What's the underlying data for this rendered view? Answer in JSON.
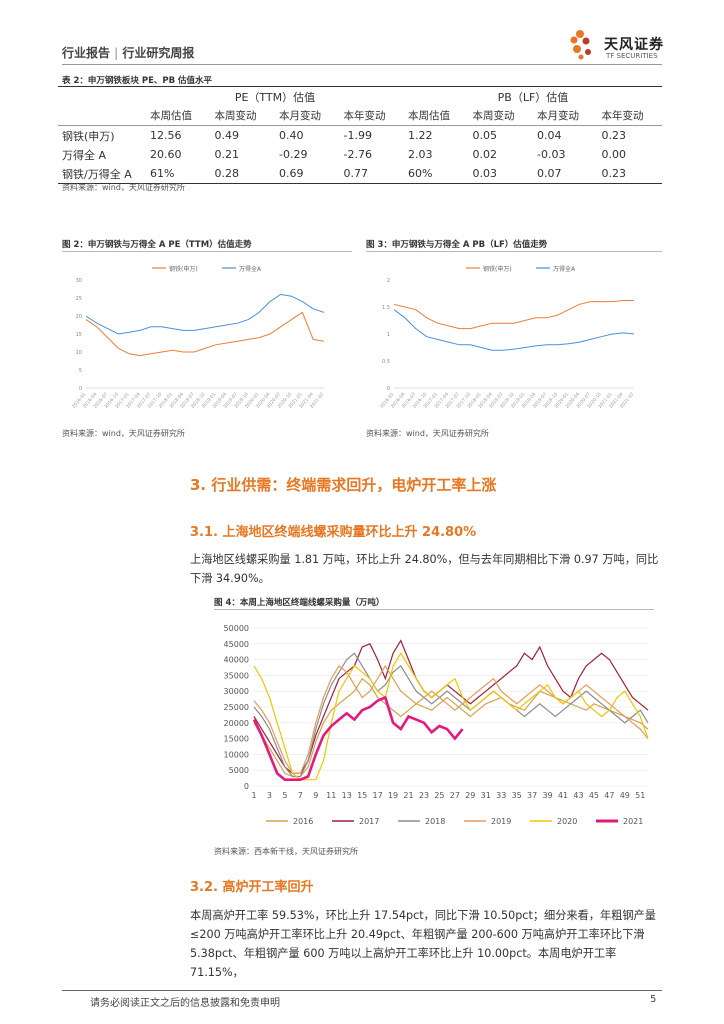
{
  "header": {
    "left": "行业报告",
    "right": "行业研究周报",
    "logo_cn": "天风证券",
    "logo_en": "TF SECURITIES"
  },
  "table": {
    "title": "表 2：申万钢铁板块 PE、PB 估值水平",
    "group_pe": "PE（TTM）估值",
    "group_pb": "PB（LF）估值",
    "cols": [
      "本周估值",
      "本周变动",
      "本月变动",
      "本年变动",
      "本周估值",
      "本周变动",
      "本月变动",
      "本年变动"
    ],
    "rows": [
      {
        "name": "钢铁(申万)",
        "vals": [
          "12.56",
          "0.49",
          "0.40",
          "-1.99",
          "1.22",
          "0.05",
          "0.04",
          "0.23"
        ]
      },
      {
        "name": "万得全 A",
        "vals": [
          "20.60",
          "0.21",
          "-0.29",
          "-2.76",
          "2.03",
          "0.02",
          "-0.03",
          "0.00"
        ]
      },
      {
        "name": "钢铁/万得全 A",
        "vals": [
          "61%",
          "0.28",
          "0.69",
          "0.77",
          "60%",
          "0.03",
          "0.07",
          "0.23"
        ]
      }
    ],
    "source": "资料来源：wind，天风证券研究所"
  },
  "fig2": {
    "title": "图 2：申万钢铁与万得全 A PE（TTM）估值走势",
    "source": "资料来源：wind，天风证券研究所"
  },
  "fig3": {
    "title": "图 3：申万钢铁与万得全 A PB（LF）估值走势",
    "source": "资料来源：wind，天风证券研究所"
  },
  "section3": {
    "heading": "3. 行业供需：终端需求回升，电炉开工率上涨"
  },
  "section31": {
    "heading": "3.1. 上海地区终端线螺采购量环比上升 24.80%",
    "para": "上海地区线螺采购量 1.81 万吨，环比上升 24.80%，但与去年同期相比下滑 0.97 万吨，同比下滑 34.90%。"
  },
  "fig4": {
    "title": "图 4：本周上海地区终端线螺采购量（万吨）",
    "source": "资料来源：西本新干线，天风证券研究所"
  },
  "section32": {
    "heading": "3.2. 高炉开工率回升",
    "para": "本周高炉开工率 59.53%，环比上升 17.54pct，同比下滑 10.50pct；细分来看，年粗钢产量≤200 万吨高炉开工率环比上升 20.49pct、年粗钢产量 200-600 万吨高炉开工率环比下滑 5.38pct、年粗钢产量 600 万吨以上高炉开工率环比上升 10.00pct。本周电炉开工率 71.15%，"
  },
  "footer": {
    "text": "请务必阅读正文之后的信息披露和免责申明",
    "page": "5"
  },
  "chart_data": [
    {
      "type": "line",
      "title": "图 2：申万钢铁与万得全 A PE（TTM）估值走势",
      "legend": [
        "钢铁(申万)",
        "万得全A"
      ],
      "yticks": [
        0,
        5,
        10,
        15,
        20,
        25,
        30
      ],
      "ylim": [
        0,
        30
      ],
      "colors": [
        "#ed7d31",
        "#4a90d9"
      ],
      "series": [
        {
          "name": "钢铁(申万)",
          "values": [
            19,
            17,
            14,
            11,
            9.5,
            9,
            9.5,
            10,
            10.5,
            10,
            10,
            11,
            12,
            12.5,
            13,
            13.5,
            14,
            15,
            17,
            19,
            21,
            13.5,
            13
          ]
        },
        {
          "name": "万得全A",
          "values": [
            20,
            18,
            16.5,
            15,
            15.5,
            16,
            17,
            17,
            16.5,
            16,
            16,
            16.5,
            17,
            17.5,
            18,
            19,
            21,
            24,
            26,
            25.5,
            24,
            22,
            21
          ]
        }
      ]
    },
    {
      "type": "line",
      "title": "图 3：申万钢铁与万得全 A PB（LF）估值走势",
      "legend": [
        "钢铁(申万)",
        "万得全A"
      ],
      "colors": [
        "#ed7d31",
        "#4a90d9"
      ],
      "series": [
        {
          "name": "钢铁(申万)",
          "values": [
            1.55,
            1.5,
            1.45,
            1.3,
            1.2,
            1.15,
            1.1,
            1.1,
            1.15,
            1.2,
            1.2,
            1.2,
            1.25,
            1.3,
            1.3,
            1.35,
            1.45,
            1.55,
            1.6,
            1.6,
            1.6,
            1.62,
            1.62
          ]
        },
        {
          "name": "万得全A",
          "values": [
            1.45,
            1.3,
            1.1,
            0.95,
            0.9,
            0.85,
            0.8,
            0.8,
            0.75,
            0.7,
            0.7,
            0.72,
            0.75,
            0.78,
            0.8,
            0.8,
            0.82,
            0.85,
            0.9,
            0.95,
            1.0,
            1.02,
            1.0
          ]
        }
      ]
    },
    {
      "type": "line",
      "title": "图 4：本周上海地区终端线螺采购量（万吨）",
      "yticks": [
        0,
        5000,
        10000,
        15000,
        20000,
        25000,
        30000,
        35000,
        40000,
        45000,
        50000
      ],
      "ylim": [
        0,
        50000
      ],
      "xticks": [
        "1",
        "3",
        "5",
        "7",
        "9",
        "11",
        "13",
        "15",
        "17",
        "19",
        "21",
        "23",
        "25",
        "27",
        "29",
        "31",
        "33",
        "35",
        "37",
        "39",
        "41",
        "43",
        "45",
        "47",
        "49",
        "51"
      ],
      "series": [
        {
          "name": "2016",
          "color": "#d4a24a",
          "values": [
            20000,
            16000,
            12000,
            8000,
            4000,
            3000,
            3000,
            6000,
            14000,
            20000,
            24000,
            26000,
            28000,
            30000,
            34000,
            32000,
            28000,
            26000,
            24000,
            22000,
            24000,
            26000,
            25000,
            24000,
            26000,
            28000,
            26000,
            24000,
            22000,
            24000,
            26000,
            27000,
            28000,
            26000,
            25000,
            24000,
            27000,
            30000,
            29000,
            28000,
            27000,
            26000,
            25000,
            24000,
            26000,
            25000,
            24000,
            23000,
            22000,
            21000,
            20000,
            18000
          ]
        },
        {
          "name": "2017",
          "color": "#a0203c",
          "values": [
            22000,
            18000,
            14000,
            10000,
            6000,
            4000,
            4000,
            8000,
            16000,
            22000,
            28000,
            34000,
            36000,
            38000,
            44000,
            45000,
            40000,
            34000,
            42000,
            46000,
            40000,
            34000,
            30000,
            28000,
            30000,
            32000,
            30000,
            28000,
            26000,
            28000,
            30000,
            32000,
            34000,
            36000,
            38000,
            42000,
            40000,
            44000,
            38000,
            34000,
            30000,
            28000,
            34000,
            38000,
            40000,
            42000,
            40000,
            36000,
            32000,
            28000,
            26000,
            24000
          ]
        },
        {
          "name": "2018",
          "color": "#8c8c8c",
          "values": [
            25000,
            22000,
            18000,
            12000,
            6000,
            3000,
            3000,
            8000,
            18000,
            26000,
            32000,
            36000,
            40000,
            42000,
            38000,
            34000,
            30000,
            32000,
            36000,
            38000,
            34000,
            30000,
            28000,
            26000,
            28000,
            30000,
            28000,
            26000,
            24000,
            26000,
            28000,
            30000,
            28000,
            26000,
            24000,
            22000,
            24000,
            26000,
            24000,
            22000,
            24000,
            26000,
            28000,
            30000,
            28000,
            26000,
            24000,
            22000,
            20000,
            22000,
            24000,
            20000
          ]
        },
        {
          "name": "2019",
          "color": "#e89b5a",
          "values": [
            27000,
            24000,
            20000,
            14000,
            8000,
            4000,
            4000,
            10000,
            20000,
            28000,
            34000,
            38000,
            36000,
            32000,
            28000,
            30000,
            34000,
            38000,
            34000,
            30000,
            28000,
            26000,
            28000,
            30000,
            28000,
            26000,
            24000,
            26000,
            28000,
            30000,
            32000,
            34000,
            30000,
            28000,
            26000,
            28000,
            30000,
            32000,
            30000,
            28000,
            26000,
            28000,
            30000,
            32000,
            30000,
            28000,
            26000,
            24000,
            22000,
            20000,
            18000,
            15000
          ]
        },
        {
          "name": "2020",
          "color": "#f2c500",
          "values": [
            38000,
            34000,
            28000,
            20000,
            12000,
            4000,
            2000,
            2000,
            2000,
            8000,
            20000,
            30000,
            34000,
            38000,
            36000,
            34000,
            30000,
            28000,
            38000,
            42000,
            38000,
            34000,
            30000,
            28000,
            30000,
            32000,
            34000,
            28000,
            24000,
            26000,
            28000,
            30000,
            28000,
            26000,
            24000,
            26000,
            28000,
            30000,
            32000,
            28000,
            26000,
            28000,
            30000,
            26000,
            24000,
            22000,
            24000,
            28000,
            30000,
            26000,
            22000,
            15000
          ]
        },
        {
          "name": "2021",
          "color": "#e6187e",
          "values": [
            21000,
            16000,
            10000,
            4000,
            2000,
            2000,
            2000,
            3000,
            10000,
            16000,
            19000,
            21000,
            23000,
            21000,
            24000,
            25000,
            27000,
            28000,
            20000,
            18000,
            22000,
            21000,
            20000,
            17000,
            19000,
            18000,
            15000,
            18000
          ]
        }
      ]
    }
  ]
}
